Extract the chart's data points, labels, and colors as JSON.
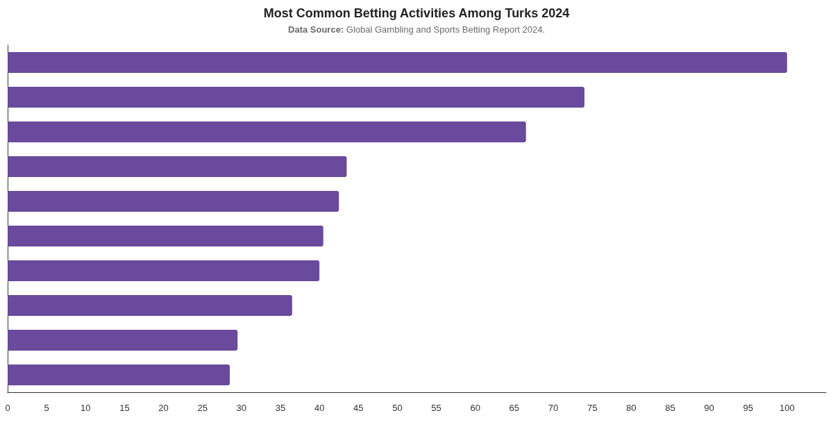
{
  "chart_data": {
    "type": "bar",
    "orientation": "horizontal",
    "title": "Most Common Betting Activities Among Turks 2024",
    "subtitle": "Data Source: Global Gambling and Sports Betting Report 2024.",
    "categories": [
      null,
      null,
      null,
      null,
      null,
      null,
      null,
      null,
      null,
      null
    ],
    "values": [
      100,
      74,
      66.5,
      43.5,
      42.5,
      40.5,
      40,
      36.5,
      29.5,
      28.5
    ],
    "color": "#694a9c",
    "xlim": [
      0,
      105
    ],
    "xticks": [
      0,
      5,
      10,
      15,
      20,
      25,
      30,
      35,
      40,
      45,
      50,
      55,
      60,
      65,
      70,
      75,
      80,
      85,
      90,
      95,
      100
    ],
    "grid": false
  }
}
